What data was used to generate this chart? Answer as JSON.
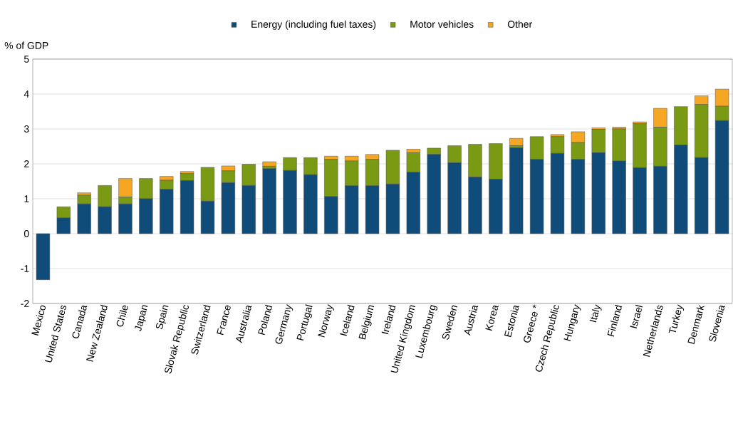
{
  "chart_data": {
    "type": "bar",
    "stacked": true,
    "ylabel": "% of GDP",
    "categories": [
      "Mexico",
      "United States",
      "Canada",
      "New Zealand",
      "Chile",
      "Japan",
      "Spain",
      "Slovak Republic",
      "Switzerland",
      "France",
      "Australia",
      "Poland",
      "Germany",
      "Portugal",
      "Norway",
      "Iceland",
      "Belgium",
      "Ireland",
      "United Kingdom",
      "Luxembourg",
      "Sweden",
      "Austria",
      "Korea",
      "Estonia",
      "Greece *",
      "Czech Republic",
      "Hungary",
      "Italy",
      "Finland",
      "Israel",
      "Netherlands",
      "Turkey",
      "Denmark",
      "Slovenia"
    ],
    "series": [
      {
        "name": "Energy (including fuel taxes)",
        "color": "#0f4c7a",
        "values": [
          -1.32,
          0.45,
          0.85,
          0.77,
          0.85,
          1.0,
          1.27,
          1.52,
          0.93,
          1.46,
          1.38,
          1.86,
          1.81,
          1.69,
          1.06,
          1.37,
          1.37,
          1.42,
          1.76,
          2.27,
          2.03,
          1.62,
          1.56,
          2.46,
          2.13,
          2.3,
          2.13,
          2.32,
          2.08,
          1.89,
          1.93,
          2.54,
          2.18,
          3.24
        ]
      },
      {
        "name": "Motor vehicles",
        "color": "#7a9a14",
        "values": [
          0,
          0.32,
          0.25,
          0.61,
          0.2,
          0.58,
          0.26,
          0.2,
          0.97,
          0.34,
          0.61,
          0.07,
          0.37,
          0.49,
          1.07,
          0.71,
          0.76,
          0.97,
          0.56,
          0.18,
          0.49,
          0.94,
          1.02,
          0.06,
          0.65,
          0.48,
          0.48,
          0.67,
          0.92,
          1.26,
          1.12,
          1.1,
          1.52,
          0.41
        ]
      },
      {
        "name": "Other",
        "color": "#f5a623",
        "values": [
          0,
          0,
          0.07,
          0,
          0.53,
          0,
          0.11,
          0.06,
          0,
          0.14,
          0,
          0.13,
          0,
          0,
          0.09,
          0.14,
          0.14,
          0,
          0.1,
          0,
          0,
          0,
          0,
          0.21,
          0,
          0.06,
          0.31,
          0.04,
          0.05,
          0.05,
          0.54,
          0,
          0.25,
          0.49
        ]
      }
    ],
    "ylim": [
      -2,
      5
    ],
    "yticks": [
      -2,
      -1,
      0,
      1,
      2,
      3,
      4,
      5
    ],
    "grid": "y",
    "legend": "top"
  }
}
